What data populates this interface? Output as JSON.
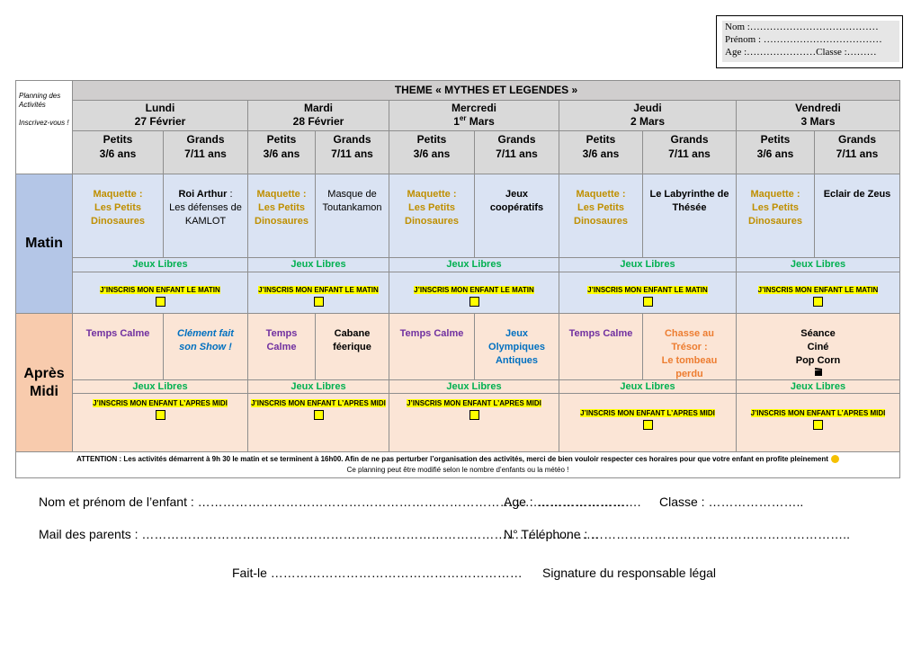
{
  "id_box": {
    "nom": "Nom :…………………………………",
    "prenom": "Prénom : ………………………………",
    "age_classe": "Age :…………………Classe :………"
  },
  "planning": {
    "side_note_1": "Planning des Activités",
    "side_note_2": "Inscrivez-vous !",
    "theme": "THEME « MYTHES ET LEGENDES »",
    "matin_label": "Matin",
    "apres_midi_label": "Après\nMidi",
    "days": [
      {
        "name": "Lundi",
        "date": "27 Février",
        "groups": [
          "Petits\n3/6 ans",
          "Grands\n7/11 ans"
        ],
        "matin": [
          [
            {
              "text": "Maquette :\nLes Petits\nDinosaures",
              "color": "#bf8f00",
              "bold": true
            }
          ],
          [
            {
              "text": "Roi Arthur",
              "bold": true
            },
            {
              "text": " :\nLes défenses de\nKAMLOT"
            }
          ]
        ],
        "matin_jeux": "Jeux Libres",
        "matin_inscription": "J’INSCRIS MON ENFANT LE MATIN",
        "apres_midi": [
          [
            {
              "text": "Temps Calme",
              "color": "#7030a0",
              "bold": true
            }
          ],
          [
            {
              "text": "Clément fait\nson Show !",
              "color": "#0070c0",
              "bold": true,
              "italic": true
            }
          ]
        ],
        "apres_midi_jeux": "Jeux Libres",
        "apres_midi_inscription": "J’INSCRIS MON ENFANT L’APRES MIDI"
      },
      {
        "name": "Mardi",
        "date": "28 Février",
        "groups": [
          "Petits\n3/6 ans",
          "Grands\n7/11 ans"
        ],
        "matin": [
          [
            {
              "text": "Maquette :\nLes Petits\nDinosaures",
              "color": "#bf8f00",
              "bold": true
            }
          ],
          [
            {
              "text": "Masque de\nToutankamon"
            }
          ]
        ],
        "matin_jeux": "Jeux Libres",
        "matin_inscription": "J’INSCRIS MON ENFANT LE MATIN",
        "apres_midi": [
          [
            {
              "text": "Temps\nCalme",
              "color": "#7030a0",
              "bold": true
            }
          ],
          [
            {
              "text": "Cabane\nféerique",
              "bold": true
            }
          ]
        ],
        "apres_midi_jeux": "Jeux Libres",
        "apres_midi_inscription": "J’INSCRIS MON ENFANT L’APRES MIDI"
      },
      {
        "name": "Mercredi",
        "date": "1",
        "date_sup": "er",
        "date_rest": " Mars",
        "groups": [
          "Petits\n3/6 ans",
          "Grands\n7/11 ans"
        ],
        "matin": [
          [
            {
              "text": "Maquette :\nLes Petits\nDinosaures",
              "color": "#bf8f00",
              "bold": true
            }
          ],
          [
            {
              "text": "Jeux\ncoopératifs",
              "bold": true
            }
          ]
        ],
        "matin_jeux": "Jeux Libres",
        "matin_inscription": "J’INSCRIS MON ENFANT LE MATIN",
        "apres_midi": [
          [
            {
              "text": "Temps Calme",
              "color": "#7030a0",
              "bold": true
            }
          ],
          [
            {
              "text": "Jeux\nOlympiques\nAntiques",
              "color": "#0070c0",
              "bold": true
            }
          ]
        ],
        "apres_midi_jeux": "Jeux Libres",
        "apres_midi_inscription": "J’INSCRIS MON ENFANT L’APRES MIDI"
      },
      {
        "name": "Jeudi",
        "date": "2 Mars",
        "groups": [
          "Petits\n3/6 ans",
          "Grands\n7/11 ans"
        ],
        "matin": [
          [
            {
              "text": "Maquette :\nLes Petits\nDinosaures",
              "color": "#bf8f00",
              "bold": true
            }
          ],
          [
            {
              "text": "Le Labyrinthe de\nThésée",
              "bold": true
            }
          ]
        ],
        "matin_jeux": "Jeux Libres",
        "matin_inscription": "J’INSCRIS MON ENFANT LE MATIN",
        "apres_midi": [
          [
            {
              "text": "Temps Calme",
              "color": "#7030a0",
              "bold": true
            }
          ],
          [
            {
              "text": "Chasse au\nTrésor :\nLe tombeau\nperdu",
              "color": "#ed7d31",
              "bold": true
            }
          ]
        ],
        "apres_midi_jeux": "Jeux Libres",
        "apres_midi_inscription": "J’INSCRIS MON ENFANT L’APRES MIDI"
      },
      {
        "name": "Vendredi",
        "date": "3 Mars",
        "groups": [
          "Petits\n3/6 ans",
          "Grands\n7/11 ans"
        ],
        "matin": [
          [
            {
              "text": "Maquette :\nLes Petits\nDinosaures",
              "color": "#bf8f00",
              "bold": true
            }
          ],
          [
            {
              "text": "Eclair de Zeus",
              "bold": true
            }
          ]
        ],
        "matin_jeux": "Jeux Libres",
        "matin_inscription": "J’INSCRIS MON ENFANT LE MATIN",
        "apres_midi": [
          [
            {
              "text": "Séance\nCiné\nPop Corn",
              "bold": true
            }
          ]
        ],
        "apres_midi_jeux": "Jeux Libres",
        "apres_midi_inscription": "J’INSCRIS MON ENFANT L’APRES MIDI"
      }
    ],
    "attention": "ATTENTION : Les activités démarrent à 9h 30 le matin et se terminent à 16h00. Afin de ne pas perturber l’organisation des activités, merci de bien vouloir respecter ces horaires pour que votre enfant en profite pleinement",
    "note": "Ce planning peut être modifié selon le nombre d’enfants ou la météo !"
  },
  "form": {
    "nom_prenom": "Nom et prénom de l’enfant : ………………………………………………………………………………………….",
    "age": "Age : …………………….",
    "classe": "Classe : …………………..",
    "mail": "Mail des parents : ……………………………………………………………………………………………….",
    "telephone": "N° Téléphone : ……………………………………………………..",
    "fait_le": "Fait-le ……………………………………………………",
    "signature": "Signature du responsable légal"
  }
}
